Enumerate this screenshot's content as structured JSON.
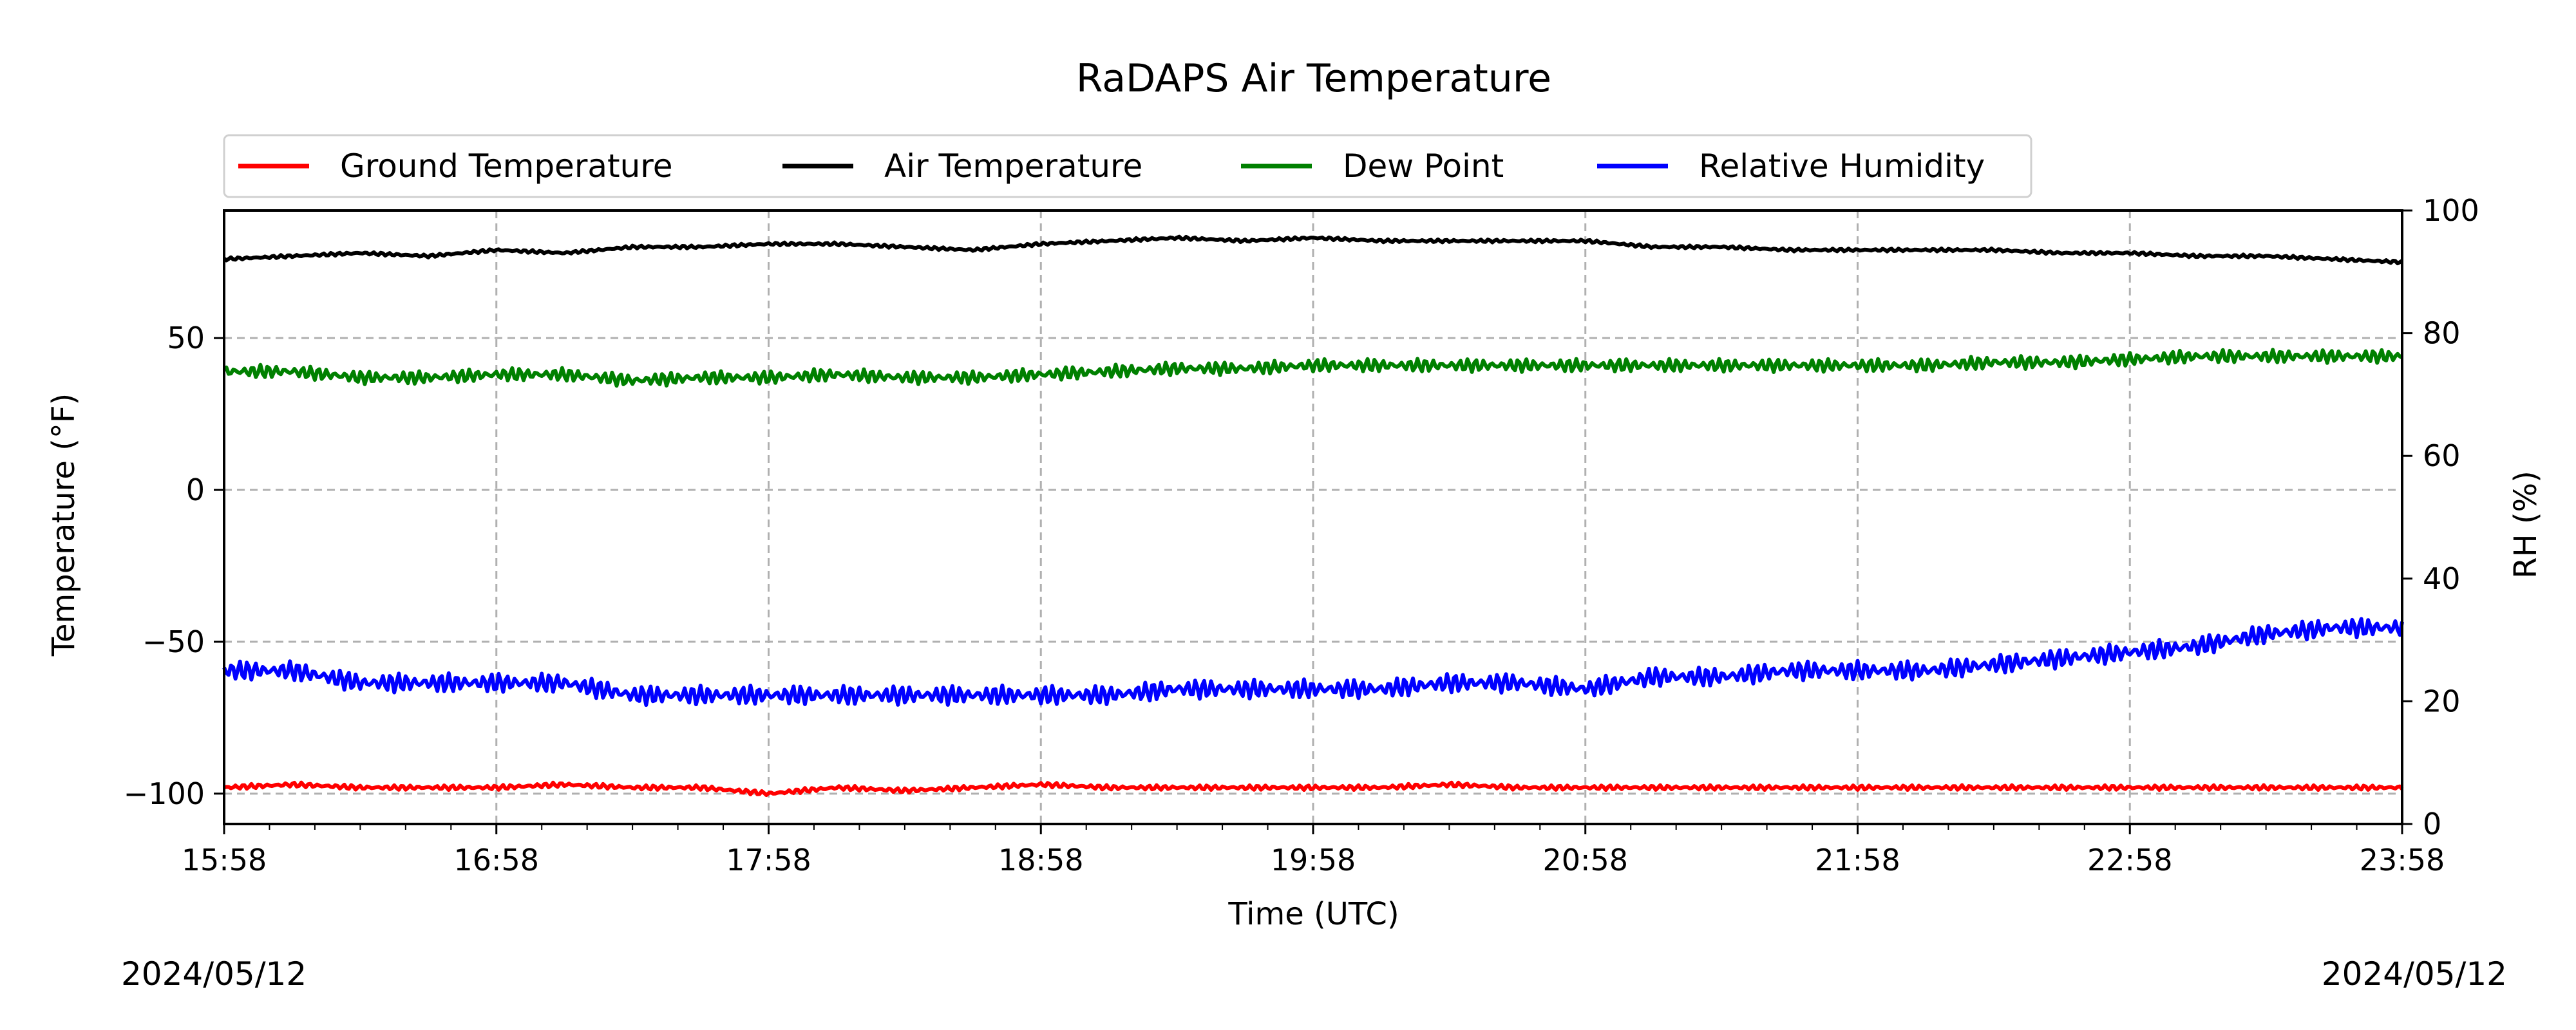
{
  "chart_data": {
    "type": "line",
    "title": "RaDAPS Air Temperature",
    "xlabel": "Time (UTC)",
    "ylabel": "Temperature ($^\\circ$F)",
    "ylabel_display": "Temperature (°F)",
    "y2label": "RH (%)",
    "date_left": "2024/05/12",
    "date_right": "2024/05/12",
    "x_ticks": [
      "15:58",
      "16:58",
      "17:58",
      "18:58",
      "19:58",
      "20:58",
      "21:58",
      "22:58",
      "23:58"
    ],
    "xlim": [
      "15:58",
      "23:58"
    ],
    "ylim": [
      -110,
      92
    ],
    "y_ticks": [
      -100,
      -50,
      0,
      50
    ],
    "y2lim": [
      0,
      100
    ],
    "y2_ticks": [
      0,
      20,
      40,
      60,
      80,
      100
    ],
    "grid": true,
    "legend": {
      "placement": "top",
      "entries": [
        "Ground Temperature",
        "Air Temperature",
        "Dew Point",
        "Relative Humidity"
      ]
    },
    "colors": {
      "Ground Temperature": "#ff0000",
      "Air Temperature": "#000000",
      "Dew Point": "#008000",
      "Relative Humidity": "#0000ff"
    },
    "series": [
      {
        "name": "Ground Temperature",
        "axis": "left",
        "color": "#ff0000",
        "x": [
          "15:58",
          "16:13",
          "16:28",
          "16:43",
          "16:58",
          "17:13",
          "17:28",
          "17:43",
          "17:58",
          "18:13",
          "18:28",
          "18:43",
          "18:58",
          "19:13",
          "19:28",
          "19:43",
          "19:58",
          "20:13",
          "20:28",
          "20:43",
          "20:58",
          "21:13",
          "21:28",
          "21:43",
          "21:58",
          "22:13",
          "22:28",
          "22:43",
          "22:58",
          "23:13",
          "23:28",
          "23:43",
          "23:58"
        ],
        "y": [
          -98,
          -97,
          -98,
          -98,
          -98,
          -97,
          -98,
          -98,
          -100,
          -98,
          -99,
          -98,
          -97,
          -98,
          -98,
          -98,
          -98,
          -98,
          -97,
          -98,
          -98,
          -98,
          -98,
          -98,
          -98,
          -98,
          -98,
          -98,
          -98,
          -98,
          -98,
          -98,
          -98
        ]
      },
      {
        "name": "Air Temperature",
        "axis": "left",
        "color": "#000000",
        "x": [
          "15:58",
          "16:13",
          "16:28",
          "16:43",
          "16:58",
          "17:13",
          "17:28",
          "17:43",
          "17:58",
          "18:13",
          "18:28",
          "18:43",
          "18:58",
          "19:13",
          "19:28",
          "19:43",
          "19:58",
          "20:13",
          "20:28",
          "20:43",
          "20:58",
          "21:13",
          "21:28",
          "21:43",
          "21:58",
          "22:13",
          "22:28",
          "22:43",
          "22:58",
          "23:13",
          "23:28",
          "23:43",
          "23:58"
        ],
        "y": [
          76,
          77,
          78,
          77,
          79,
          78,
          80,
          80,
          81,
          81,
          80,
          79,
          81,
          82,
          83,
          82,
          83,
          82,
          82,
          82,
          82,
          80,
          80,
          79,
          79,
          79,
          79,
          78,
          78,
          77,
          77,
          76,
          75
        ]
      },
      {
        "name": "Dew Point",
        "axis": "left",
        "color": "#008000",
        "x": [
          "15:58",
          "16:13",
          "16:28",
          "16:43",
          "16:58",
          "17:13",
          "17:28",
          "17:43",
          "17:58",
          "18:13",
          "18:28",
          "18:43",
          "18:58",
          "19:13",
          "19:28",
          "19:43",
          "19:58",
          "20:13",
          "20:28",
          "20:43",
          "20:58",
          "21:13",
          "21:28",
          "21:43",
          "21:58",
          "22:13",
          "22:28",
          "22:43",
          "22:58",
          "23:13",
          "23:28",
          "23:43",
          "23:58"
        ],
        "y": [
          39,
          39,
          37,
          37,
          38,
          38,
          36,
          37,
          37,
          38,
          37,
          37,
          38,
          39,
          40,
          40,
          41,
          41,
          41,
          41,
          41,
          41,
          41,
          41,
          41,
          41,
          42,
          42,
          43,
          44,
          44,
          44,
          44
        ]
      },
      {
        "name": "Relative Humidity",
        "axis": "right",
        "color": "#0000ff",
        "x": [
          "15:58",
          "16:13",
          "16:28",
          "16:43",
          "16:58",
          "17:13",
          "17:28",
          "17:43",
          "17:58",
          "18:13",
          "18:28",
          "18:43",
          "18:58",
          "19:13",
          "19:28",
          "19:43",
          "19:58",
          "20:13",
          "20:28",
          "20:43",
          "20:58",
          "21:13",
          "21:28",
          "21:43",
          "21:58",
          "22:13",
          "22:28",
          "22:43",
          "22:58",
          "23:13",
          "23:28",
          "23:43",
          "23:58"
        ],
        "y": [
          25,
          25,
          23,
          23,
          23,
          23,
          21,
          21,
          21,
          21,
          21,
          21,
          21,
          21,
          22,
          22,
          22,
          22,
          23,
          23,
          22,
          24,
          24,
          25,
          25,
          25,
          26,
          27,
          28,
          29,
          31,
          32,
          32
        ]
      }
    ]
  }
}
